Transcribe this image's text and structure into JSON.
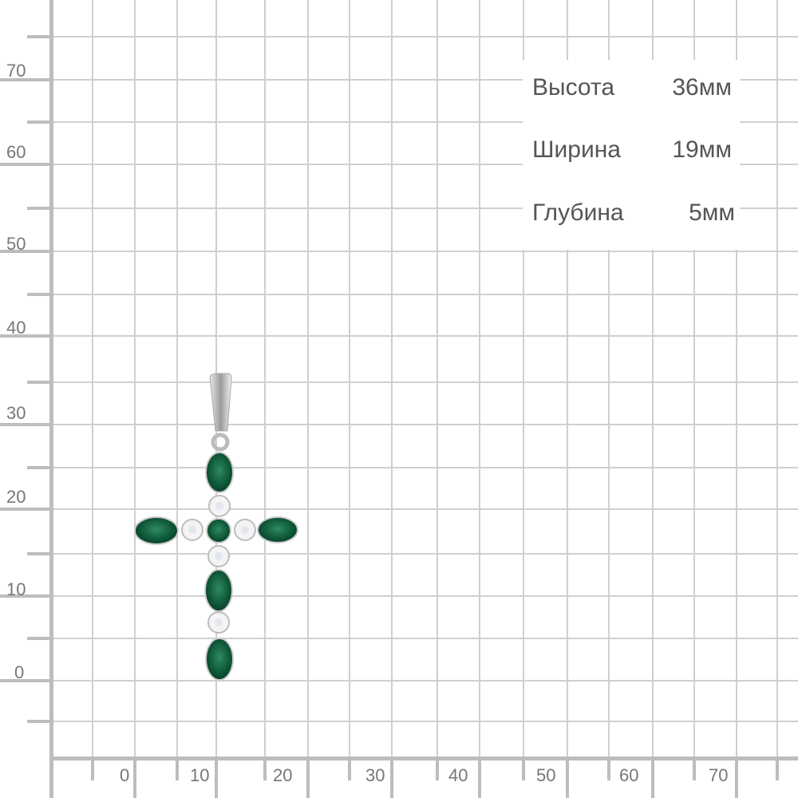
{
  "y_axis_labels": [
    "70",
    "60",
    "50",
    "40",
    "30",
    "20",
    "10",
    "0"
  ],
  "x_axis_labels": [
    "0",
    "10",
    "20",
    "30",
    "40",
    "50",
    "60",
    "70"
  ],
  "specs": [
    {
      "label": "Высота",
      "value": "36мм"
    },
    {
      "label": "Ширина",
      "value": "19мм"
    },
    {
      "label": "Глубина",
      "value": "5мм"
    }
  ],
  "colors": {
    "grid": "#cfcfcf",
    "axis": "#bdbdbd",
    "stone": "#0f5a3a",
    "metal": "#d8d8d8",
    "text": "#555555"
  },
  "product": "cross-pendant-green-stones"
}
